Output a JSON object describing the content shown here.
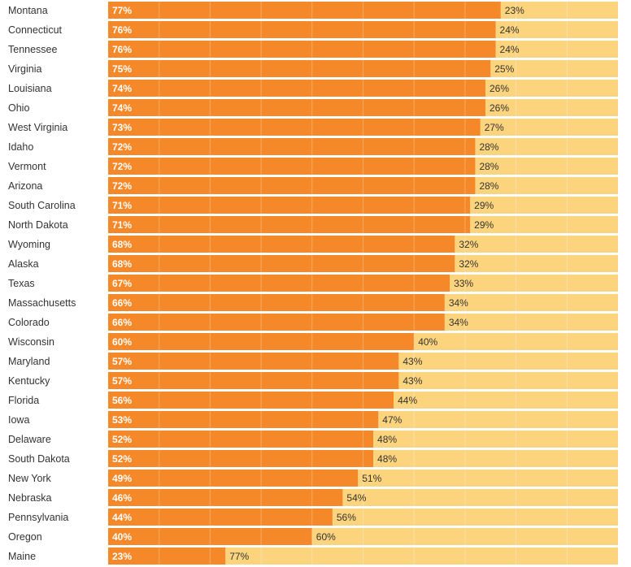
{
  "chart_data": {
    "type": "bar",
    "orientation": "horizontal",
    "stacked": true,
    "categories": [
      "Montana",
      "Connecticut",
      "Tennessee",
      "Virginia",
      "Louisiana",
      "Ohio",
      "West Virginia",
      "Idaho",
      "Vermont",
      "Arizona",
      "South Carolina",
      "North Dakota",
      "Wyoming",
      "Alaska",
      "Texas",
      "Massachusetts",
      "Colorado",
      "Wisconsin",
      "Maryland",
      "Kentucky",
      "Florida",
      "Iowa",
      "Delaware",
      "South Dakota",
      "New York",
      "Nebraska",
      "Pennsylvania",
      "Oregon",
      "Maine"
    ],
    "series": [
      {
        "values": [
          77,
          76,
          76,
          75,
          74,
          74,
          73,
          72,
          72,
          72,
          71,
          71,
          68,
          68,
          67,
          66,
          66,
          60,
          57,
          57,
          56,
          53,
          52,
          52,
          49,
          46,
          44,
          40,
          23
        ],
        "labels": [
          "77%",
          "76%",
          "76%",
          "75%",
          "74%",
          "74%",
          "73%",
          "72%",
          "72%",
          "72%",
          "71%",
          "71%",
          "68%",
          "68%",
          "67%",
          "66%",
          "66%",
          "60%",
          "57%",
          "57%",
          "56%",
          "53%",
          "52%",
          "52%",
          "49%",
          "46%",
          "44%",
          "40%",
          "23%"
        ],
        "color": "#f5892a"
      },
      {
        "values": [
          23,
          24,
          24,
          25,
          26,
          26,
          27,
          28,
          28,
          28,
          29,
          29,
          32,
          32,
          33,
          34,
          34,
          40,
          43,
          43,
          44,
          47,
          48,
          48,
          51,
          54,
          56,
          60,
          77
        ],
        "labels": [
          "23%",
          "24%",
          "24%",
          "25%",
          "26%",
          "26%",
          "27%",
          "28%",
          "28%",
          "28%",
          "29%",
          "29%",
          "32%",
          "32%",
          "33%",
          "34%",
          "34%",
          "40%",
          "43%",
          "43%",
          "44%",
          "47%",
          "48%",
          "48%",
          "51%",
          "54%",
          "56%",
          "60%",
          "77%"
        ],
        "color": "#fdd47e"
      }
    ],
    "xlim": [
      0,
      100
    ],
    "grid": true,
    "legend": "none"
  }
}
